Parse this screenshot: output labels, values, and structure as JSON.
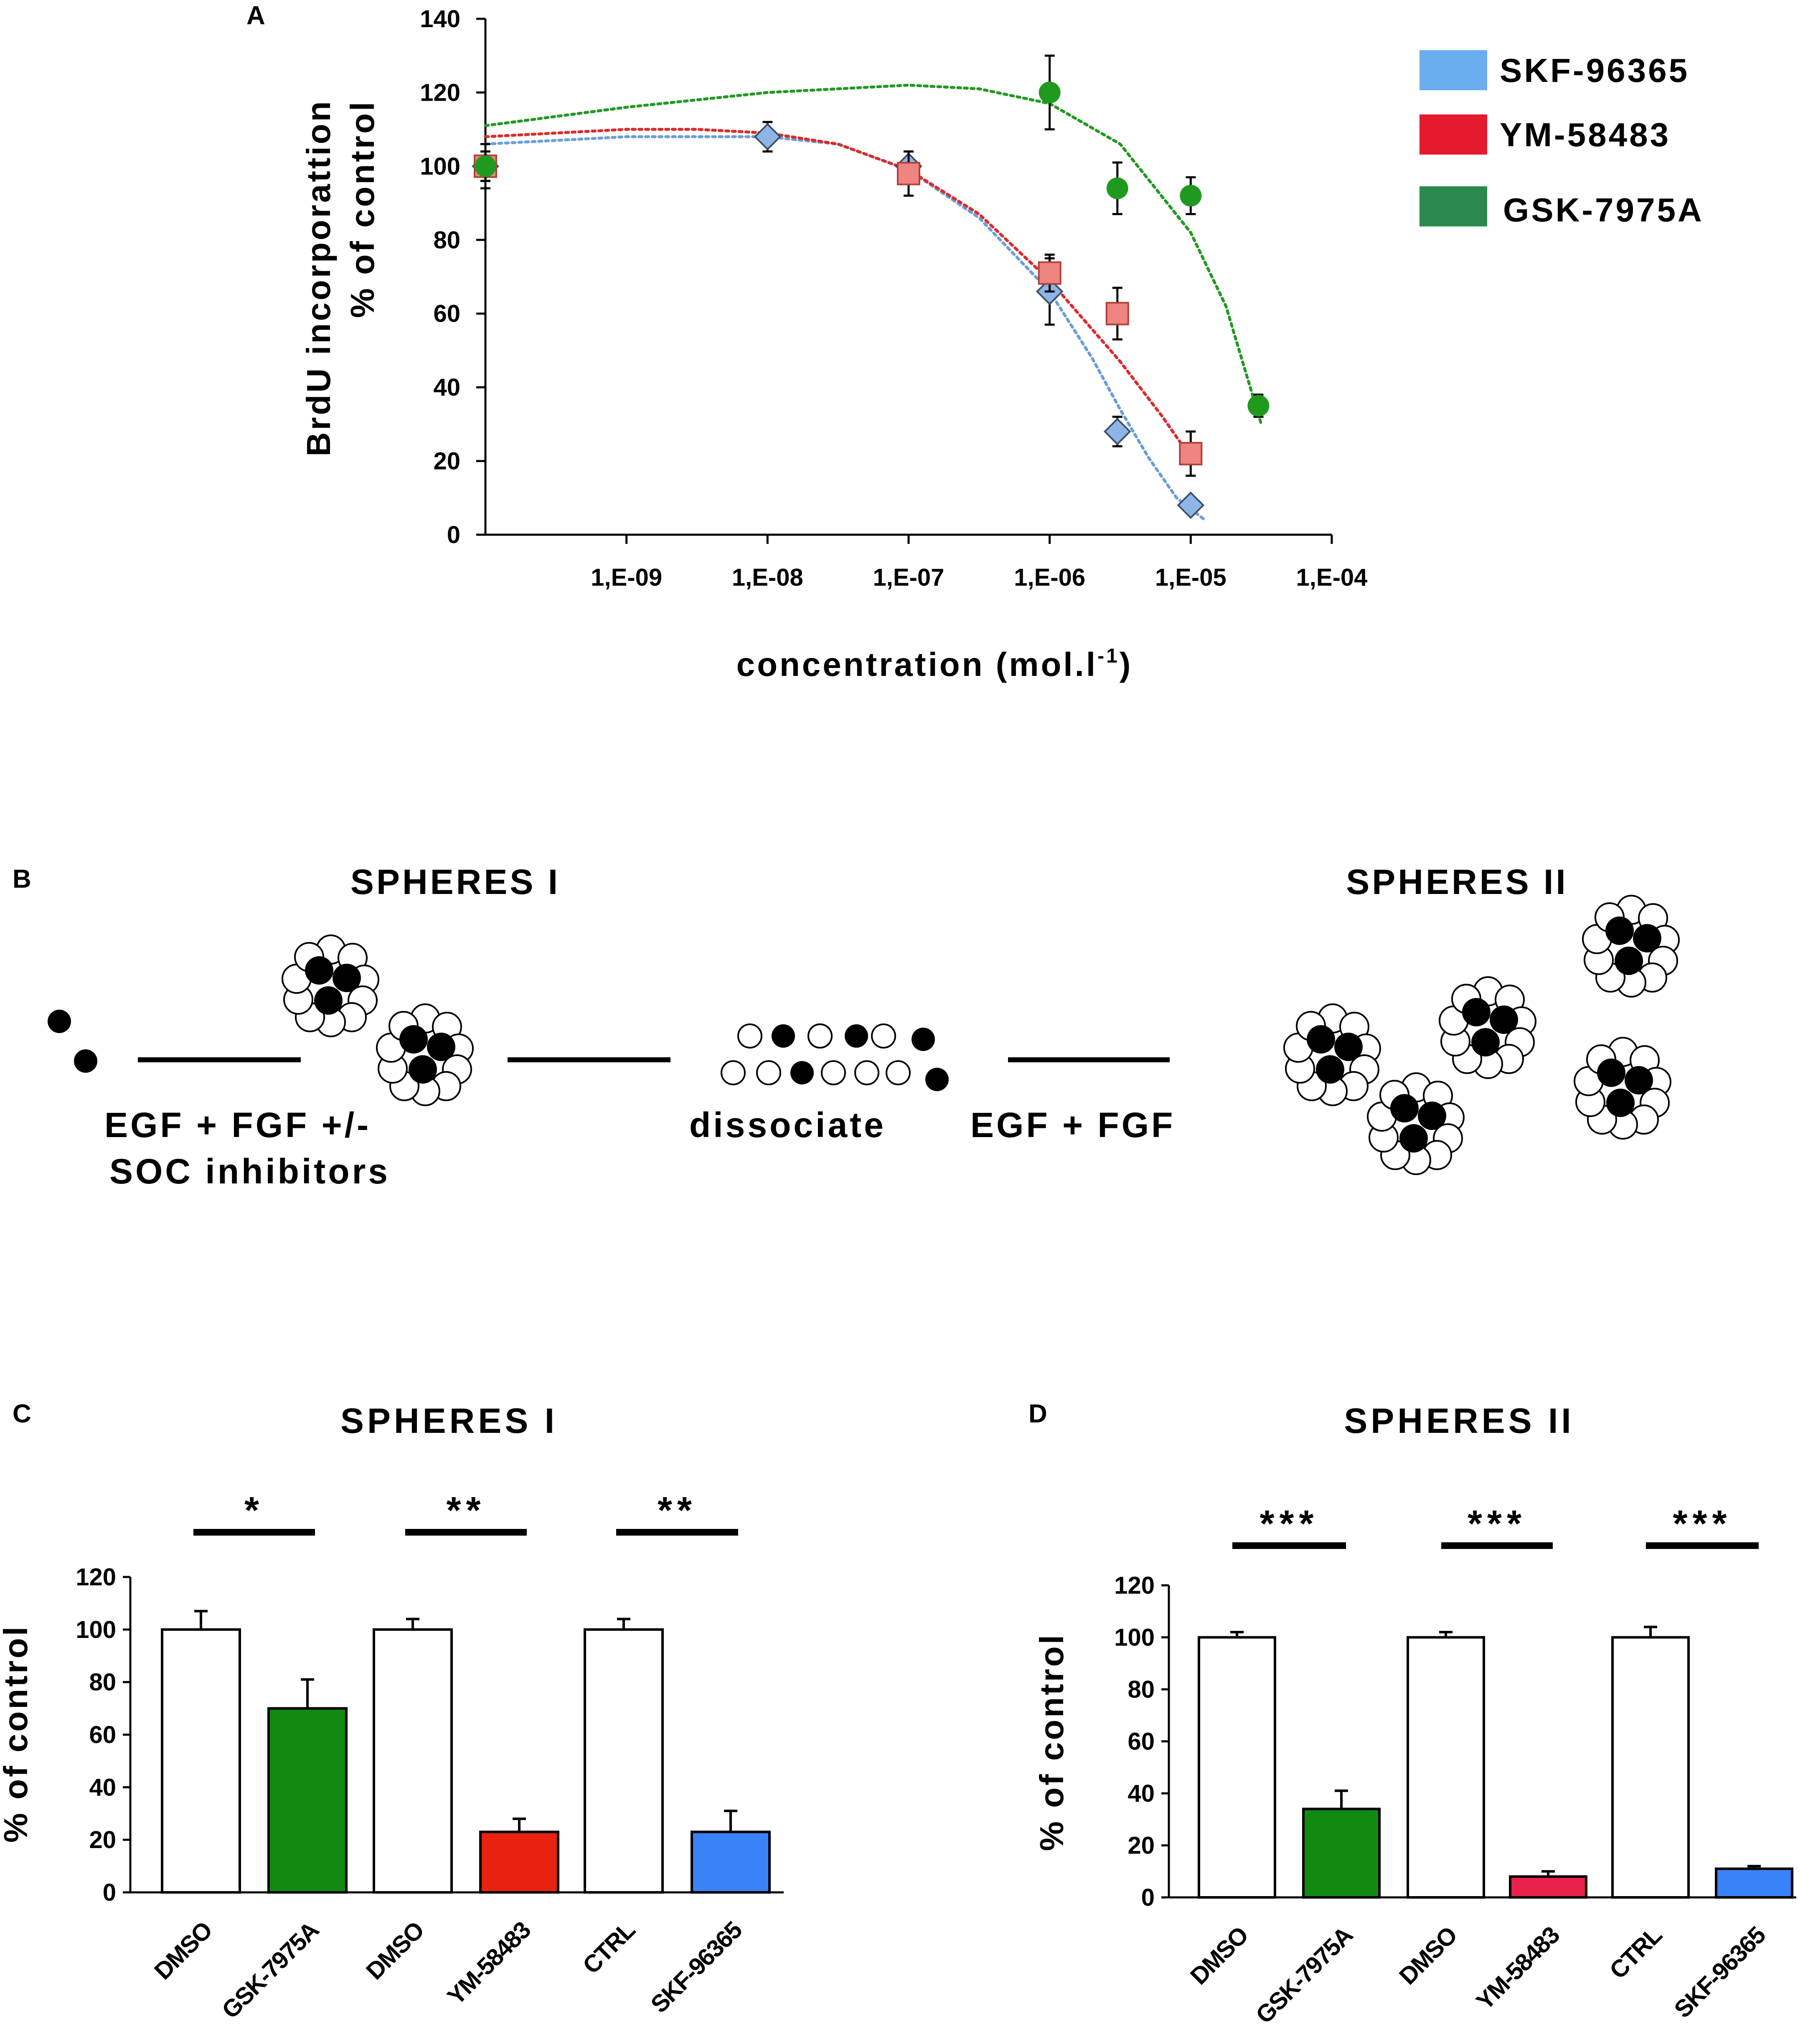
{
  "panels": {
    "a": "A",
    "b": "B",
    "c": "C",
    "d": "D"
  },
  "chart_data": [
    {
      "id": "A",
      "type": "scatter",
      "title": "",
      "xlabel_main": "concentration (mol.l",
      "xlabel_sup": "-1",
      "xlabel_tail": ")",
      "ylabel_line1": "BrdU incorporattion",
      "ylabel_line2": "% of control",
      "x_scale": "log",
      "xlim_exp": [
        -10,
        -4
      ],
      "ylim": [
        0,
        140
      ],
      "yticks": [
        0,
        20,
        40,
        60,
        80,
        100,
        120,
        140
      ],
      "ytick_labels": [
        "0",
        "20",
        "40",
        "60",
        "80",
        "100",
        "120",
        "140"
      ],
      "xticks_exp": [
        -9,
        -8,
        -7,
        -6,
        -5,
        -4
      ],
      "xtick_labels": [
        "1,E-09",
        "1,E-08",
        "1,E-07",
        "1,E-06",
        "1,E-05",
        "1,E-04"
      ],
      "legend_position": "top-right",
      "series": [
        {
          "name": "SKF-96365",
          "legend_color": "#6aaef0",
          "marker_color": "#8db6e6",
          "line_color": "#6a9fd6",
          "marker": "diamond",
          "x_exp": [
            -10,
            -8,
            -7,
            -6,
            -5.52,
            -5
          ],
          "y": [
            100,
            108,
            100,
            66,
            28,
            8
          ],
          "err": [
            4,
            4,
            4,
            9,
            4,
            2
          ],
          "fit_x_exp": [
            -10,
            -9,
            -8,
            -7.5,
            -7,
            -6.5,
            -6,
            -5.7,
            -5.5,
            -5.3,
            -5.1,
            -4.9
          ],
          "fit_y": [
            106,
            108,
            108,
            106,
            99,
            86,
            66,
            48,
            34,
            21,
            10,
            4
          ]
        },
        {
          "name": "YM-58483",
          "legend_color": "#e51a2e",
          "marker_color": "#ee8580",
          "line_color": "#dd2a2a",
          "marker": "square",
          "x_exp": [
            -10,
            -7,
            -6,
            -5.52,
            -5
          ],
          "y": [
            100,
            98,
            71,
            60,
            22
          ],
          "err": [
            4,
            6,
            5,
            7,
            6
          ],
          "fit_x_exp": [
            -10,
            -9,
            -8.5,
            -8,
            -7.5,
            -7,
            -6.5,
            -6,
            -5.5,
            -5.2,
            -5
          ],
          "fit_y": [
            108,
            110,
            110,
            109,
            106,
            99,
            87,
            69,
            47,
            32,
            21
          ]
        },
        {
          "name": "GSK-7975A",
          "legend_color": "#2a8a4e",
          "marker_color": "#1f9a1f",
          "line_color": "#229922",
          "marker": "circle",
          "x_exp": [
            -10,
            -6,
            -5.52,
            -5,
            -4.52
          ],
          "y": [
            100,
            120,
            94,
            92,
            35
          ],
          "err": [
            6,
            10,
            7,
            5,
            3
          ],
          "fit_x_exp": [
            -10,
            -9,
            -8,
            -7,
            -6.5,
            -6,
            -5.5,
            -5,
            -4.75,
            -4.5
          ],
          "fit_y": [
            111,
            116,
            120,
            122,
            121,
            117,
            106,
            82,
            62,
            30
          ]
        }
      ]
    },
    {
      "id": "C",
      "type": "bar",
      "title": "SPHERES I",
      "ylabel": "% of control",
      "ylim": [
        0,
        120
      ],
      "yticks": [
        0,
        20,
        40,
        60,
        80,
        100,
        120
      ],
      "ytick_labels": [
        "0",
        "20",
        "40",
        "60",
        "80",
        "100",
        "120"
      ],
      "categories": [
        "DMSO",
        "GSK-7975A",
        "DMSO",
        "YM-58483",
        "CTRL",
        "SKF-96365"
      ],
      "values": [
        100,
        70,
        100,
        23,
        100,
        23
      ],
      "errors": [
        7,
        11,
        4,
        5,
        4,
        8
      ],
      "colors": [
        "#ffffff",
        "#128a12",
        "#ffffff",
        "#e8220e",
        "#ffffff",
        "#3a82f7"
      ],
      "significance": [
        "*",
        "**",
        "**"
      ]
    },
    {
      "id": "D",
      "type": "bar",
      "title": "SPHERES II",
      "ylabel": "% of control",
      "ylim": [
        0,
        120
      ],
      "yticks": [
        0,
        20,
        40,
        60,
        80,
        100,
        120
      ],
      "ytick_labels": [
        "0",
        "20",
        "40",
        "60",
        "80",
        "100",
        "120"
      ],
      "categories": [
        "DMSO",
        "GSK-7975A",
        "DMSO",
        "YM-58483",
        "CTRL",
        "SKF-96365"
      ],
      "values": [
        100,
        34,
        100,
        8,
        100,
        11
      ],
      "errors": [
        2,
        7,
        2,
        2,
        4,
        1
      ],
      "colors": [
        "#ffffff",
        "#128a12",
        "#ffffff",
        "#e8224a",
        "#ffffff",
        "#3a82f7"
      ],
      "significance": [
        "***",
        "***",
        "***"
      ]
    }
  ],
  "diagram": {
    "spheres_1_title": "SPHERES I",
    "spheres_2_title": "SPHERES II",
    "step1_line1": "EGF + FGF +/-",
    "step1_line2": "SOC inhibitors",
    "step2": "dissociate",
    "step3": "EGF + FGF"
  }
}
